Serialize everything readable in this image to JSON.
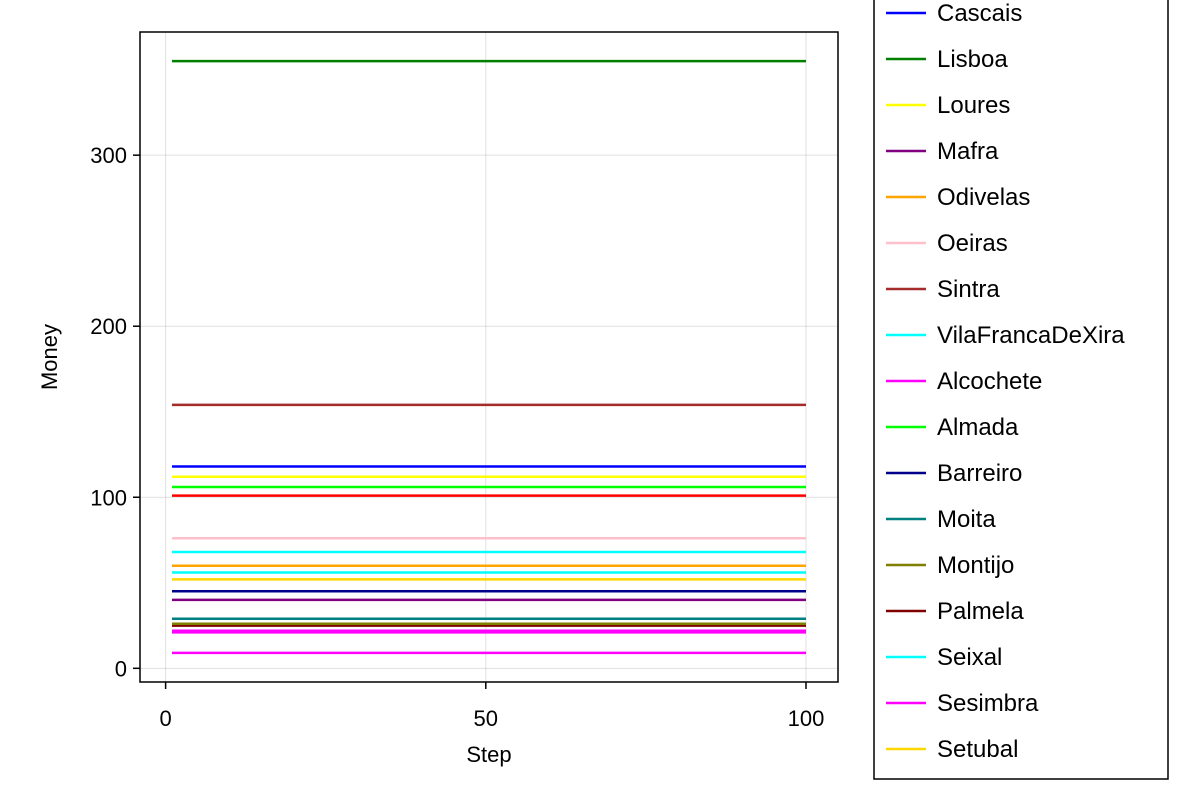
{
  "chart_data": {
    "type": "line",
    "title": "",
    "xlabel": "Step",
    "ylabel": "Money",
    "xlim": [
      -4,
      105
    ],
    "ylim": [
      -8,
      372
    ],
    "x_ticks": [
      0,
      50,
      100
    ],
    "y_ticks": [
      0,
      100,
      200,
      300
    ],
    "grid": true,
    "legend_position": "right",
    "x": [
      1,
      100
    ],
    "series": [
      {
        "name": "Cascais",
        "color": "#0000ff",
        "values": [
          118,
          118
        ]
      },
      {
        "name": "Lisboa",
        "color": "#008000",
        "values": [
          355,
          355
        ]
      },
      {
        "name": "Loures",
        "color": "#ffff00",
        "values": [
          112,
          112
        ]
      },
      {
        "name": "Mafra",
        "color": "#800080",
        "values": [
          40,
          40
        ]
      },
      {
        "name": "Odivelas",
        "color": "#ffa500",
        "values": [
          60,
          60
        ]
      },
      {
        "name": "Oeiras",
        "color": "#ffc0cb",
        "values": [
          76,
          76
        ]
      },
      {
        "name": "Sintra",
        "color": "#a52a2a",
        "values": [
          154,
          154
        ]
      },
      {
        "name": "VilaFrancaDeXira",
        "color": "#00ffff",
        "values": [
          68,
          68
        ]
      },
      {
        "name": "Alcochete",
        "color": "#ff00ff",
        "values": [
          22,
          22
        ]
      },
      {
        "name": "Almada",
        "color": "#00ff00",
        "values": [
          106,
          106
        ]
      },
      {
        "name": "Barreiro",
        "color": "#00008b",
        "values": [
          45,
          45
        ]
      },
      {
        "name": "Moita",
        "color": "#008080",
        "values": [
          29,
          29
        ]
      },
      {
        "name": "Montijo",
        "color": "#808000",
        "values": [
          26,
          26
        ]
      },
      {
        "name": "Palmela",
        "color": "#800000",
        "values": [
          25,
          25
        ]
      },
      {
        "name": "Seixal",
        "color": "#00ffff",
        "values": [
          56,
          56
        ]
      },
      {
        "name": "Sesimbra",
        "color": "#ff00ff",
        "values": [
          9,
          9
        ]
      },
      {
        "name": "Setubal",
        "color": "#ffd700",
        "values": [
          52,
          52
        ]
      }
    ],
    "unlabeled_series": [
      {
        "color": "#ff0000",
        "values": [
          101,
          101
        ]
      },
      {
        "color": "#ff00ff",
        "values": [
          21,
          21
        ]
      }
    ]
  }
}
